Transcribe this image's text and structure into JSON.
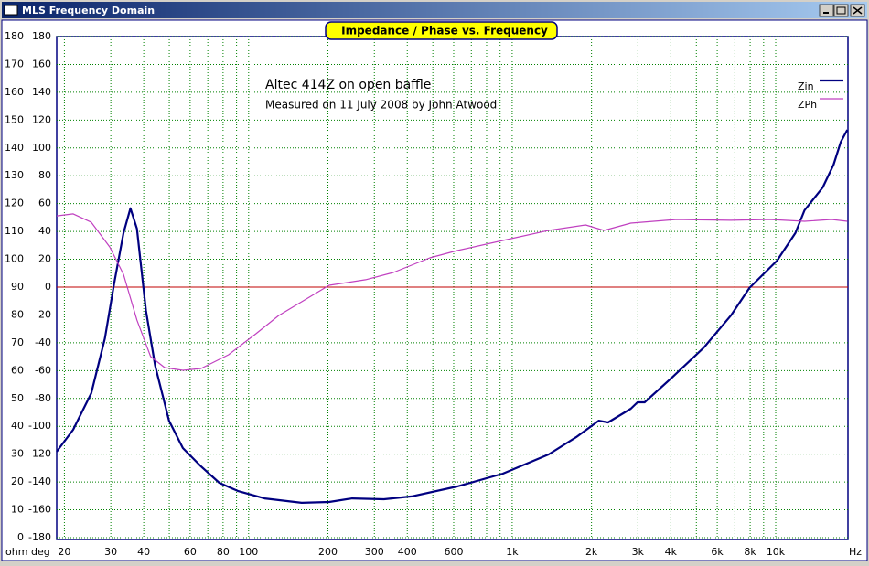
{
  "window_title": "MLS Frequency Domain",
  "chart_data": {
    "type": "line",
    "title": "Impedance / Phase vs. Frequency",
    "annotations": [
      "Altec 414Z on open baffle",
      "Measured on 11 July 2008 by John Atwood"
    ],
    "ylabel": "ohm",
    "y2label": "deg",
    "xlabel": "Hz",
    "log_x": true,
    "xlim": [
      18.7,
      18800
    ],
    "xticks": [
      20,
      30,
      40,
      60,
      80,
      100,
      200,
      300,
      400,
      600,
      {
        "value": 1000,
        "label": "1k"
      },
      {
        "value": 2000,
        "label": "2k"
      },
      {
        "value": 3000,
        "label": "3k"
      },
      {
        "value": 4000,
        "label": "4k"
      },
      {
        "value": 6000,
        "label": "6k"
      },
      {
        "value": 8000,
        "label": "8k"
      },
      {
        "value": 10000,
        "label": "10k"
      }
    ],
    "xgrid": [
      20,
      30,
      40,
      50,
      60,
      70,
      80,
      90,
      100,
      200,
      300,
      400,
      500,
      600,
      700,
      800,
      900,
      1000,
      2000,
      3000,
      4000,
      5000,
      6000,
      7000,
      8000,
      9000,
      10000
    ],
    "ylim": [
      0,
      180
    ],
    "yticks": [
      0,
      10,
      20,
      30,
      40,
      50,
      60,
      70,
      80,
      90,
      100,
      110,
      120,
      130,
      140,
      150,
      160,
      170,
      180
    ],
    "y2lim": [
      -180,
      180
    ],
    "y2ticks": [
      -180,
      -160,
      -140,
      -120,
      -100,
      -80,
      -60,
      -40,
      -20,
      0,
      20,
      40,
      60,
      80,
      100,
      120,
      140,
      160,
      180
    ],
    "grid": true,
    "grid_color": "#008000",
    "reference_line": {
      "axis": "y2",
      "value": 0,
      "color": "#c00000"
    },
    "legend": "top-right",
    "series": [
      {
        "name": "Zin",
        "color": "#000080",
        "axis": "y",
        "x": [
          18.7,
          21.6,
          25.3,
          28.5,
          30.9,
          33.5,
          35.6,
          37.7,
          40.8,
          44.2,
          49.9,
          56.3,
          66,
          77.4,
          90.9,
          115,
          159,
          202,
          247,
          326,
          415,
          619,
          922,
          1375,
          1750,
          2130,
          2310,
          2820,
          2990,
          3180,
          4040,
          5340,
          6760,
          7950,
          10110,
          11870,
          12860,
          15080,
          16580,
          17670,
          18700
        ],
        "values": [
          30.9,
          38.8,
          51.9,
          71.6,
          91.3,
          109.4,
          118.3,
          111,
          81.5,
          61.8,
          42,
          32.2,
          25.6,
          19.7,
          16.8,
          14.1,
          12.5,
          12.8,
          14.1,
          13.8,
          14.8,
          18.4,
          23,
          29.9,
          36.1,
          42,
          41.4,
          46.3,
          48.6,
          48.6,
          57.5,
          68.3,
          79.8,
          89.7,
          99.5,
          109.4,
          117.6,
          125.8,
          134,
          142.2,
          146.5
        ]
      },
      {
        "name": "ZPh",
        "color": "#c040c0",
        "axis": "y2",
        "x": [
          18.7,
          21.6,
          25.3,
          29.7,
          33.5,
          37.7,
          42.5,
          48,
          56.3,
          66,
          83.9,
          106.6,
          130,
          159,
          202,
          278,
          354,
          487,
          619,
          922,
          1375,
          1900,
          2230,
          2820,
          4210,
          6760,
          9480,
          12860,
          16300,
          18700
        ],
        "values": [
          51.2,
          52.6,
          46.6,
          28.9,
          9.2,
          -23.7,
          -49.9,
          -57.8,
          -59.8,
          -58.5,
          -48.6,
          -33.5,
          -20.4,
          -10.5,
          1.3,
          5.3,
          10.5,
          21,
          26.3,
          33.5,
          40.7,
          44.7,
          40.7,
          46,
          48.6,
          48,
          48.6,
          47.3,
          48.6,
          47.3
        ]
      }
    ]
  }
}
